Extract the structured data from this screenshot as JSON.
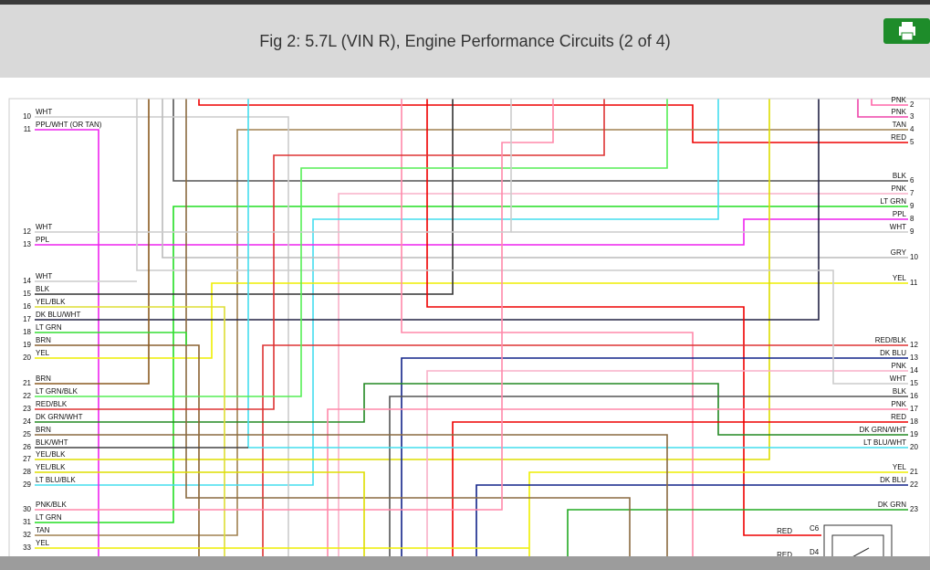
{
  "header": {
    "title": "Fig 2: 5.7L (VIN R), Engine Performance Circuits (2 of 4)"
  },
  "diagram": {
    "left_pins": [
      {
        "number": 10,
        "label": "WHT"
      },
      {
        "number": 11,
        "label": "PPL/WHT (OR TAN)"
      },
      {
        "number": 12,
        "label": "WHT"
      },
      {
        "number": 13,
        "label": "PPL"
      },
      {
        "number": 14,
        "label": "WHT"
      },
      {
        "number": 15,
        "label": "BLK"
      },
      {
        "number": 16,
        "label": "YEL/BLK"
      },
      {
        "number": 17,
        "label": "DK BLU/WHT"
      },
      {
        "number": 18,
        "label": "LT GRN"
      },
      {
        "number": 19,
        "label": "BRN"
      },
      {
        "number": 20,
        "label": "YEL"
      },
      {
        "number": 21,
        "label": "BRN"
      },
      {
        "number": 22,
        "label": "LT GRN/BLK"
      },
      {
        "number": 23,
        "label": "RED/BLK"
      },
      {
        "number": 24,
        "label": "DK GRN/WHT"
      },
      {
        "number": 25,
        "label": "BRN"
      },
      {
        "number": 26,
        "label": "BLK/WHT"
      },
      {
        "number": 27,
        "label": "YEL/BLK"
      },
      {
        "number": 28,
        "label": "YEL/BLK"
      },
      {
        "number": 29,
        "label": "LT BLU/BLK"
      },
      {
        "number": 30,
        "label": "PNK/BLK"
      },
      {
        "number": 31,
        "label": "LT GRN"
      },
      {
        "number": 32,
        "label": "TAN"
      },
      {
        "number": 33,
        "label": "YEL"
      }
    ],
    "right_pins": [
      {
        "number": 2,
        "label": "PNK"
      },
      {
        "number": 3,
        "label": "PNK"
      },
      {
        "number": 4,
        "label": "TAN"
      },
      {
        "number": 5,
        "label": "RED"
      },
      {
        "number": 6,
        "label": "BLK"
      },
      {
        "number": 7,
        "label": "PNK"
      },
      {
        "number": 9,
        "label": "LT GRN"
      },
      {
        "number": 8,
        "label": "PPL"
      },
      {
        "number": 9,
        "label": "WHT"
      },
      {
        "number": 10,
        "label": "GRY"
      },
      {
        "number": 11,
        "label": "YEL"
      },
      {
        "number": 12,
        "label": "RED/BLK"
      },
      {
        "number": 13,
        "label": "DK BLU"
      },
      {
        "number": 14,
        "label": "PNK"
      },
      {
        "number": 15,
        "label": "WHT"
      },
      {
        "number": 16,
        "label": "BLK"
      },
      {
        "number": 17,
        "label": "PNK"
      },
      {
        "number": 18,
        "label": "RED"
      },
      {
        "number": 19,
        "label": "DK GRN/WHT"
      },
      {
        "number": 20,
        "label": "LT BLU/WHT"
      },
      {
        "number": 21,
        "label": "YEL"
      },
      {
        "number": 22,
        "label": "DK BLU"
      },
      {
        "number": 23,
        "label": "DK GRN"
      }
    ],
    "connector": [
      {
        "wire": "RED",
        "pin": "C6"
      },
      {
        "wire": "RED",
        "pin": "D4"
      }
    ]
  }
}
